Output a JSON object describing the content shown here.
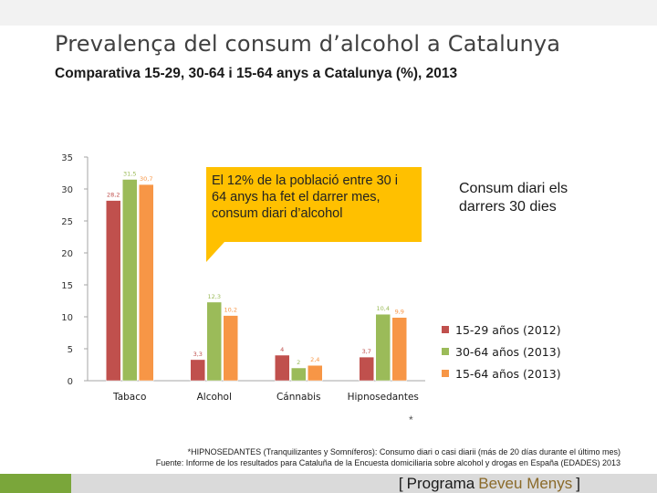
{
  "slide": {
    "title": "Prevalença del consum d’alcohol a Catalunya",
    "subtitle": "Comparativa 15-29, 30-64 i 15-64 anys a Catalunya (%), 2013",
    "callout": "El 12% de la població entre 30 i 64 anys ha fet el darrer mes, consum diari d’alcohol",
    "side_note": "Consum diari els darrers 30 dies",
    "asterisk": "*",
    "footnote_line1": "*HIPNOSEDANTES (Tranquilizantes y Somníferos): Consumo diari o casi diarii (más de 20 días durante el último mes)",
    "footnote_line2": "Fuente: Informe de los resultados para Cataluña de la Encuesta domiciliaria sobre alcohol y drogas en España (EDADES) 2013",
    "brand": {
      "open": "[",
      "part1": "Programa",
      "part2": "Beveu Menys",
      "close": "]"
    },
    "colors": {
      "accent_bar": "#7aa63a",
      "callout": "#ffc000"
    }
  },
  "chart_data": {
    "type": "bar",
    "categories": [
      "Tabaco",
      "Alcohol",
      "Cánnabis",
      "Hipnosedantes"
    ],
    "series": [
      {
        "name": "15-29 años (2012)",
        "color": "#c0504d",
        "values": [
          28.2,
          3.3,
          4.0,
          3.7
        ],
        "labels": [
          "28,2",
          "3,3",
          "4",
          "3,7"
        ]
      },
      {
        "name": "30-64 años (2013)",
        "color": "#9bbb59",
        "values": [
          31.5,
          12.3,
          2.0,
          10.4
        ],
        "labels": [
          "31,5",
          "12,3",
          "2",
          "10,4"
        ]
      },
      {
        "name": "15-64 años (2013)",
        "color": "#f79646",
        "values": [
          30.7,
          10.2,
          2.4,
          9.9
        ],
        "labels": [
          "30,7",
          "10,2",
          "2,4",
          "9,9"
        ]
      }
    ],
    "yticks": [
      0,
      5,
      10,
      15,
      20,
      25,
      30,
      35
    ],
    "ylim": [
      0,
      35
    ],
    "legend_position": "right",
    "grid": false
  }
}
